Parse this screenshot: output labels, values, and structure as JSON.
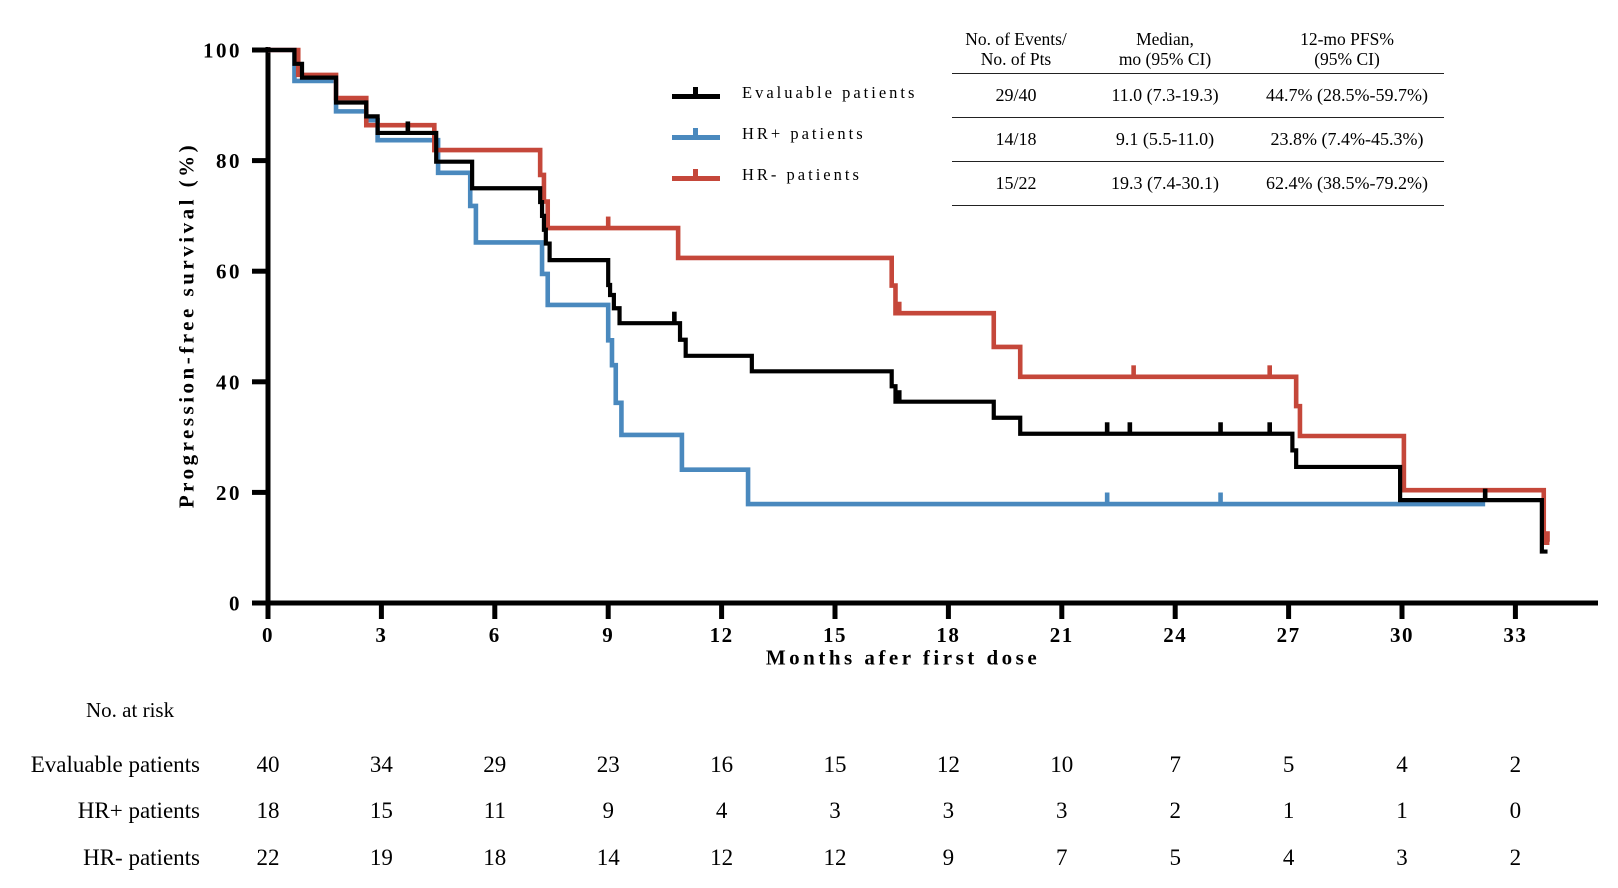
{
  "legend": {
    "items": [
      {
        "label": "Evaluable patients",
        "color": "#000000"
      },
      {
        "label": "HR+ patients",
        "color": "#4A89BE"
      },
      {
        "label": "HR- patients",
        "color": "#C5473A"
      }
    ]
  },
  "stats_table": {
    "col_headers": [
      "No. of Events/\nNo. of Pts",
      "Median,\nmo (95% CI)",
      "12-mo PFS%\n(95% CI)"
    ],
    "rows": [
      {
        "events_pts": "29/40",
        "median": "11.0 (7.3-19.3)",
        "pfs12": "44.7% (28.5%-59.7%)"
      },
      {
        "events_pts": "14/18",
        "median": "9.1 (5.5-11.0)",
        "pfs12": "23.8% (7.4%-45.3%)"
      },
      {
        "events_pts": "15/22",
        "median": "19.3 (7.4-30.1)",
        "pfs12": "62.4% (38.5%-79.2%)"
      }
    ]
  },
  "risk_table": {
    "title": "No. at risk",
    "months": [
      0,
      3,
      6,
      9,
      12,
      15,
      18,
      21,
      24,
      27,
      30,
      33
    ],
    "rows": [
      {
        "label": "Evaluable patients",
        "values": [
          40,
          34,
          29,
          23,
          16,
          15,
          12,
          10,
          7,
          5,
          4,
          2
        ]
      },
      {
        "label": "HR+ patients",
        "values": [
          18,
          15,
          11,
          9,
          4,
          3,
          3,
          3,
          2,
          1,
          1,
          0
        ]
      },
      {
        "label": "HR- patients",
        "values": [
          22,
          19,
          18,
          14,
          12,
          12,
          9,
          7,
          5,
          4,
          3,
          2
        ]
      }
    ]
  },
  "chart_data": {
    "type": "line",
    "subtype": "kaplan-meier-step",
    "title": "",
    "xlabel": "Months afer first dose",
    "ylabel": "Progression-free survival (%)",
    "xlim": [
      0,
      35
    ],
    "ylim": [
      0,
      100
    ],
    "x_ticks": [
      0,
      3,
      6,
      9,
      12,
      15,
      18,
      21,
      24,
      27,
      30,
      33
    ],
    "y_ticks": [
      0,
      20,
      40,
      60,
      80,
      100
    ],
    "grid": false,
    "legend_position": "upper-left-inside",
    "series": [
      {
        "name": "Evaluable patients",
        "color": "#000000",
        "n": 40,
        "events": 29,
        "median_months": "11.0 (7.3-19.3)",
        "pfs_12mo": "44.7% (28.5%-59.7%)",
        "steps": [
          [
            0,
            100
          ],
          [
            0.7,
            97.5
          ],
          [
            0.9,
            95
          ],
          [
            1.8,
            90.5
          ],
          [
            2.6,
            88
          ],
          [
            2.9,
            85
          ],
          [
            4.45,
            79.8
          ],
          [
            5.4,
            75
          ],
          [
            7.2,
            72.5
          ],
          [
            7.25,
            70
          ],
          [
            7.3,
            67.5
          ],
          [
            7.35,
            65
          ],
          [
            7.45,
            62
          ],
          [
            9.0,
            57.5
          ],
          [
            9.05,
            55.7
          ],
          [
            9.15,
            53.3
          ],
          [
            9.3,
            50.6
          ],
          [
            10.9,
            47.6
          ],
          [
            11.05,
            44.7
          ],
          [
            12.8,
            41.9
          ],
          [
            16.5,
            39.2
          ],
          [
            16.6,
            36.4
          ],
          [
            19.2,
            33.5
          ],
          [
            19.9,
            30.6
          ],
          [
            27.1,
            27.6
          ],
          [
            27.2,
            24.6
          ],
          [
            29.95,
            18.6
          ],
          [
            33.7,
            9.3
          ]
        ],
        "end_month": 33.85,
        "censors": [
          [
            3.7,
            85
          ],
          [
            10.75,
            50.6
          ],
          [
            16.7,
            36.4
          ],
          [
            22.2,
            30.6
          ],
          [
            22.8,
            30.6
          ],
          [
            25.2,
            30.6
          ],
          [
            26.5,
            30.6
          ],
          [
            32.2,
            18.6
          ]
        ]
      },
      {
        "name": "HR+ patients",
        "color": "#4A89BE",
        "n": 18,
        "events": 14,
        "median_months": "9.1 (5.5-11.0)",
        "pfs_12mo": "23.8% (7.4%-45.3%)",
        "steps": [
          [
            0,
            100
          ],
          [
            0.7,
            94.4
          ],
          [
            1.8,
            88.9
          ],
          [
            2.6,
            87.3
          ],
          [
            2.9,
            83.7
          ],
          [
            4.5,
            77.8
          ],
          [
            5.35,
            71.8
          ],
          [
            5.5,
            65.2
          ],
          [
            7.25,
            59.5
          ],
          [
            7.4,
            53.9
          ],
          [
            9.0,
            47.5
          ],
          [
            9.1,
            43
          ],
          [
            9.2,
            36.2
          ],
          [
            9.35,
            30.4
          ],
          [
            10.95,
            24.1
          ],
          [
            12.7,
            17.9
          ]
        ],
        "end_month": 32.2,
        "censors": [
          [
            22.2,
            17.9
          ],
          [
            25.2,
            17.9
          ]
        ]
      },
      {
        "name": "HR- patients",
        "color": "#C5473A",
        "n": 22,
        "events": 15,
        "median_months": "19.3 (7.4-30.1)",
        "pfs_12mo": "62.4% (38.5%-79.2%)",
        "steps": [
          [
            0,
            100
          ],
          [
            0.8,
            95.5
          ],
          [
            1.8,
            91.3
          ],
          [
            2.6,
            86.4
          ],
          [
            4.4,
            81.9
          ],
          [
            7.2,
            77.4
          ],
          [
            7.3,
            72.6
          ],
          [
            7.4,
            67.8
          ],
          [
            10.85,
            62.4
          ],
          [
            16.5,
            57.4
          ],
          [
            16.6,
            52.4
          ],
          [
            19.2,
            46.3
          ],
          [
            19.9,
            40.9
          ],
          [
            27.2,
            35.6
          ],
          [
            27.3,
            30.2
          ],
          [
            30.05,
            20.4
          ],
          [
            33.75,
            10.9
          ]
        ],
        "end_month": 33.9,
        "censors": [
          [
            9.0,
            67.8
          ],
          [
            16.7,
            52.4
          ],
          [
            22.9,
            40.9
          ],
          [
            26.5,
            40.9
          ],
          [
            33.85,
            10.9
          ]
        ]
      }
    ]
  }
}
